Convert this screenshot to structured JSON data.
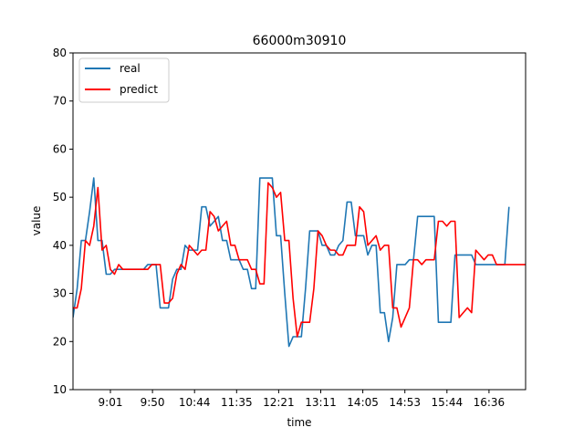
{
  "chart_data": {
    "type": "line",
    "title": "66000m30910",
    "xlabel": "time",
    "ylabel": "value",
    "ylim": [
      10,
      80
    ],
    "yticks": [
      10,
      20,
      30,
      40,
      50,
      60,
      70,
      80
    ],
    "x_tick_labels": [
      "9:01",
      "9:50",
      "10:44",
      "11:35",
      "12:21",
      "13:11",
      "14:05",
      "14:53",
      "15:44",
      "16:36"
    ],
    "legend": {
      "position": "top-left",
      "entries": [
        "real",
        "predict"
      ]
    },
    "grid": false,
    "series": [
      {
        "name": "real",
        "color": "#1f77b4",
        "values": [
          25,
          31,
          41,
          41,
          47,
          54,
          41,
          41,
          34,
          34,
          35,
          35,
          35,
          35,
          35,
          35,
          35,
          35,
          36,
          36,
          36,
          27,
          27,
          27,
          33,
          35,
          35,
          40,
          39,
          39,
          39,
          48,
          48,
          44,
          45,
          46,
          41,
          41,
          37,
          37,
          37,
          35,
          35,
          31,
          31,
          54,
          54,
          54,
          54,
          42,
          42,
          30,
          19,
          21,
          21,
          21,
          31,
          43,
          43,
          43,
          40,
          40,
          38,
          38,
          40,
          41,
          49,
          49,
          42,
          42,
          42,
          38,
          40,
          40,
          26,
          26,
          20,
          25,
          36,
          36,
          36,
          37,
          37,
          46,
          46,
          46,
          46,
          46,
          24,
          24,
          24,
          24,
          38,
          38,
          38,
          38,
          38,
          36,
          36,
          36,
          36,
          36,
          36,
          36,
          36,
          48
        ]
      },
      {
        "name": "predict",
        "color": "#ff0000",
        "values": [
          27,
          27,
          31,
          41,
          40,
          44,
          52,
          39,
          40,
          35,
          34,
          36,
          35,
          35,
          35,
          35,
          35,
          35,
          35,
          36,
          36,
          36,
          28,
          28,
          29,
          34,
          36,
          35,
          40,
          39,
          38,
          39,
          39,
          47,
          46,
          43,
          44,
          45,
          40,
          40,
          37,
          37,
          37,
          35,
          35,
          32,
          32,
          53,
          52,
          50,
          51,
          41,
          41,
          29,
          21,
          24,
          24,
          24,
          31,
          43,
          42,
          40,
          39,
          39,
          38,
          38,
          40,
          40,
          40,
          48,
          47,
          40,
          41,
          42,
          39,
          40,
          40,
          27,
          27,
          23,
          25,
          27,
          37,
          37,
          36,
          37,
          37,
          37,
          45,
          45,
          44,
          45,
          45,
          25,
          26,
          27,
          26,
          39,
          38,
          37,
          38,
          38,
          36,
          36,
          36,
          36,
          36,
          36,
          36,
          36
        ]
      }
    ]
  }
}
